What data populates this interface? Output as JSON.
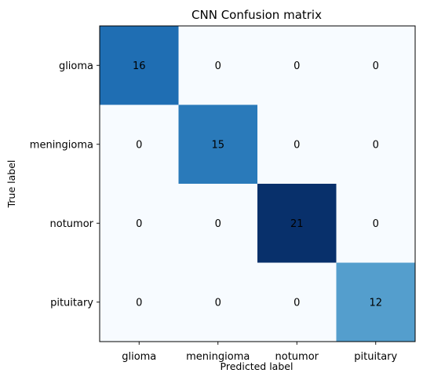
{
  "chart_data": {
    "type": "heatmap",
    "title": "CNN Confusion matrix",
    "xlabel": "Predicted label",
    "ylabel": "True label",
    "x_categories": [
      "glioma",
      "meningioma",
      "notumor",
      "pituitary"
    ],
    "y_categories": [
      "glioma",
      "meningioma",
      "notumor",
      "pituitary"
    ],
    "values": [
      [
        16,
        0,
        0,
        0
      ],
      [
        0,
        15,
        0,
        0
      ],
      [
        0,
        0,
        21,
        0
      ],
      [
        0,
        0,
        0,
        12
      ]
    ],
    "colormap": "Blues",
    "value_range": [
      0,
      21
    ],
    "grid": false,
    "text_color_dark": "#000000",
    "text_color_light": "#ffffff"
  }
}
